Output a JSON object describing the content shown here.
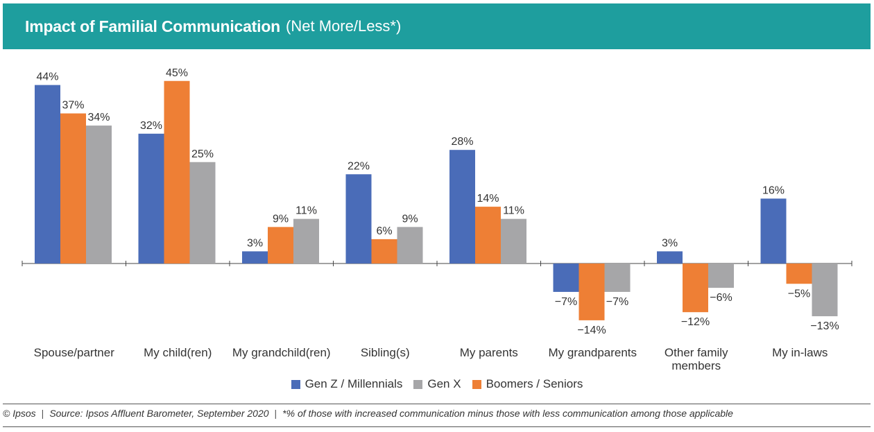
{
  "header": {
    "title": "Impact of Familial Communication",
    "subtitle": "(Net More/Less*)"
  },
  "colors": {
    "header_bg": "#1e9e9e",
    "gen_z": "#4a6cb8",
    "gen_x": "#a6a6a8",
    "boomers": "#ee7f35"
  },
  "chart_data": {
    "type": "bar",
    "title": "Impact of Familial Communication (Net More/Less*)",
    "categories": [
      "Spouse/partner",
      "My child(ren)",
      "My grandchild(ren)",
      "Sibling(s)",
      "My parents",
      "My grandparents",
      "Other family members",
      "My in-laws"
    ],
    "series": [
      {
        "name": "Gen Z / Millennials",
        "color": "#4a6cb8",
        "values": [
          44,
          32,
          3,
          22,
          28,
          -7,
          3,
          16
        ]
      },
      {
        "name": "Boomers / Seniors",
        "color": "#ee7f35",
        "values": [
          37,
          45,
          9,
          6,
          14,
          -14,
          -12,
          -5
        ]
      },
      {
        "name": "Gen X",
        "color": "#a6a6a8",
        "values": [
          34,
          25,
          11,
          9,
          11,
          -7,
          -6,
          -13
        ]
      }
    ],
    "value_suffix": "%",
    "legend_order": [
      "Gen Z / Millennials",
      "Gen X",
      "Boomers / Seniors"
    ],
    "legend_position": "bottom-center",
    "ylim": [
      -15,
      46
    ],
    "grid": false
  },
  "footer": {
    "copyright": "© Ipsos",
    "source": "Source: Ipsos Affluent Barometer, September 2020",
    "note": "*% of those with increased communication minus those with less communication among those applicable"
  }
}
